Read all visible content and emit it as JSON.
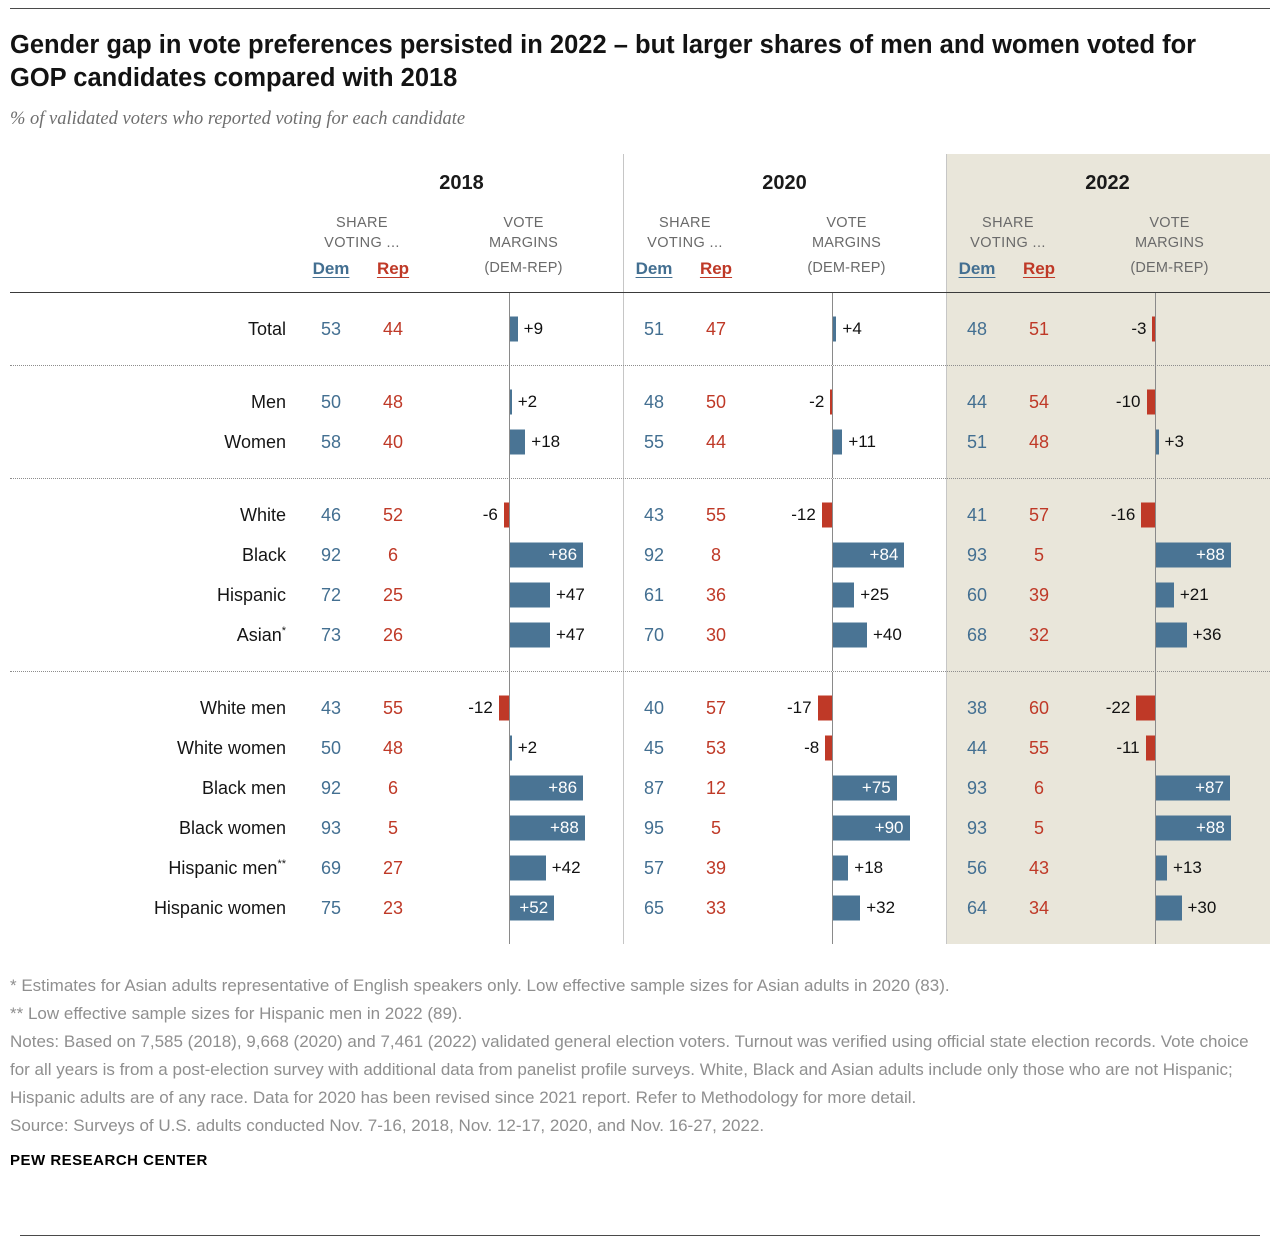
{
  "title": "Gender gap in vote preferences persisted in 2022 – but larger shares of men and women voted for GOP candidates compared with 2018",
  "subtitle": "% of validated voters who reported voting for each candidate",
  "header": {
    "share_line1": "SHARE",
    "share_line2": "VOTING ...",
    "dem": "Dem",
    "rep": "Rep",
    "margins_line1": "VOTE",
    "margins_line2": "MARGINS",
    "margins_line3": "(DEM-REP)"
  },
  "colors": {
    "dem_blue": "#436f91",
    "rep_red": "#bf3927",
    "bar_blue": "#4a7494",
    "bar_red": "#bf3927",
    "highlight_beige": "#e9e6da"
  },
  "chart_data": {
    "type": "table",
    "years": [
      "2018",
      "2020",
      "2022"
    ],
    "highlight_year": "2022",
    "columns": [
      "Dem share (%)",
      "Rep share (%)",
      "Vote margin (Dem-Rep)"
    ],
    "groups": [
      {
        "rows": [
          {
            "label": "Total",
            "sup": "",
            "years": [
              [
                53,
                44,
                9
              ],
              [
                51,
                47,
                4
              ],
              [
                48,
                51,
                -3
              ]
            ]
          }
        ]
      },
      {
        "rows": [
          {
            "label": "Men",
            "sup": "",
            "years": [
              [
                50,
                48,
                2
              ],
              [
                48,
                50,
                -2
              ],
              [
                44,
                54,
                -10
              ]
            ]
          },
          {
            "label": "Women",
            "sup": "",
            "years": [
              [
                58,
                40,
                18
              ],
              [
                55,
                44,
                11
              ],
              [
                51,
                48,
                3
              ]
            ]
          }
        ]
      },
      {
        "rows": [
          {
            "label": "White",
            "sup": "",
            "years": [
              [
                46,
                52,
                -6
              ],
              [
                43,
                55,
                -12
              ],
              [
                41,
                57,
                -16
              ]
            ]
          },
          {
            "label": "Black",
            "sup": "",
            "years": [
              [
                92,
                6,
                86
              ],
              [
                92,
                8,
                84
              ],
              [
                93,
                5,
                88
              ]
            ]
          },
          {
            "label": "Hispanic",
            "sup": "",
            "years": [
              [
                72,
                25,
                47
              ],
              [
                61,
                36,
                25
              ],
              [
                60,
                39,
                21
              ]
            ]
          },
          {
            "label": "Asian",
            "sup": "*",
            "years": [
              [
                73,
                26,
                47
              ],
              [
                70,
                30,
                40
              ],
              [
                68,
                32,
                36
              ]
            ]
          }
        ]
      },
      {
        "rows": [
          {
            "label": "White men",
            "sup": "",
            "years": [
              [
                43,
                55,
                -12
              ],
              [
                40,
                57,
                -17
              ],
              [
                38,
                60,
                -22
              ]
            ]
          },
          {
            "label": "White women",
            "sup": "",
            "years": [
              [
                50,
                48,
                2
              ],
              [
                45,
                53,
                -8
              ],
              [
                44,
                55,
                -11
              ]
            ]
          },
          {
            "label": "Black men",
            "sup": "",
            "years": [
              [
                92,
                6,
                86
              ],
              [
                87,
                12,
                75
              ],
              [
                93,
                6,
                87
              ]
            ]
          },
          {
            "label": "Black women",
            "sup": "",
            "years": [
              [
                93,
                5,
                88
              ],
              [
                95,
                5,
                90
              ],
              [
                93,
                5,
                88
              ]
            ]
          },
          {
            "label": "Hispanic men",
            "sup": "**",
            "years": [
              [
                69,
                27,
                42
              ],
              [
                57,
                39,
                18
              ],
              [
                56,
                43,
                13
              ]
            ]
          },
          {
            "label": "Hispanic women",
            "sup": "",
            "years": [
              [
                75,
                23,
                52
              ],
              [
                65,
                33,
                32
              ],
              [
                64,
                34,
                30
              ]
            ]
          }
        ]
      }
    ]
  },
  "footnotes": {
    "fn1": "* Estimates for Asian adults representative of English speakers only. Low effective sample sizes for Asian adults in 2020 (83).",
    "fn2": "** Low effective sample sizes for Hispanic men in 2022 (89).",
    "notes": "Notes: Based on 7,585 (2018), 9,668 (2020) and 7,461 (2022) validated general election voters. Turnout was verified using official state election records. Vote choice for all years is from a post-election survey with additional data from panelist profile surveys. White, Black and Asian adults include only those who are not Hispanic; Hispanic adults are of any race. Data for 2020 has been revised since 2021 report. Refer to Methodology for more detail.",
    "source": "Source: Surveys of U.S. adults conducted Nov. 7-16, 2018, Nov. 12-17, 2020, and Nov. 16-27, 2022."
  },
  "brand": "PEW RESEARCH CENTER"
}
